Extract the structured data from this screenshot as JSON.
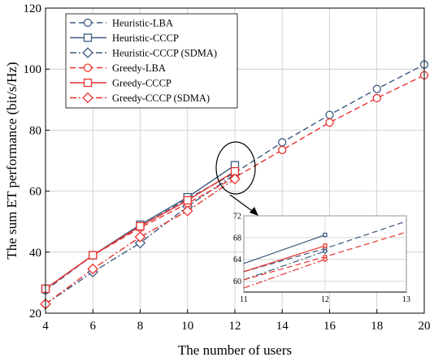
{
  "chart_data": {
    "type": "line",
    "xlabel": "The number of users",
    "ylabel": "The sum ET performance (bit/s/Hz)",
    "xlim": [
      4,
      20
    ],
    "ylim": [
      20,
      120
    ],
    "xticks": [
      "4",
      "6",
      "8",
      "10",
      "12",
      "14",
      "16",
      "18",
      "20"
    ],
    "yticks": [
      "20",
      "40",
      "60",
      "80",
      "100",
      "120"
    ],
    "grid": true,
    "legend_position": "top-left",
    "colors": {
      "heuristic": "#3d5a80",
      "greedy": "#e8322e"
    },
    "series": [
      {
        "name": "Heuristic-LBA",
        "color": "#3d5a80",
        "dash": "dashed",
        "marker": "circle",
        "x": [
          4,
          6,
          8,
          10,
          12,
          14,
          16,
          18,
          20
        ],
        "y": [
          27.5,
          39,
          48.5,
          57.5,
          66,
          76,
          85,
          93.5,
          101.5
        ]
      },
      {
        "name": "Heuristic-CCCP",
        "color": "#3d5a80",
        "dash": "solid",
        "marker": "square",
        "x": [
          4,
          6,
          8,
          10,
          12
        ],
        "y": [
          28,
          39,
          49,
          58,
          68.5
        ]
      },
      {
        "name": "Heuristic-CCCP (SDMA)",
        "color": "#3d5a80",
        "dash": "dashdot",
        "marker": "diamond",
        "x": [
          4,
          6,
          8,
          10,
          12
        ],
        "y": [
          23,
          33.5,
          43,
          55,
          65.5
        ]
      },
      {
        "name": "Greedy-LBA",
        "color": "#e8322e",
        "dash": "dashed",
        "marker": "circle",
        "x": [
          4,
          6,
          8,
          10,
          12,
          14,
          16,
          18,
          20
        ],
        "y": [
          28,
          39,
          48,
          56,
          64.5,
          73.5,
          82.5,
          90.5,
          98
        ]
      },
      {
        "name": "Greedy-CCCP",
        "color": "#e8322e",
        "dash": "solid",
        "marker": "square",
        "x": [
          4,
          6,
          8,
          10,
          12
        ],
        "y": [
          28,
          39,
          48.5,
          57,
          66.5
        ]
      },
      {
        "name": "Greedy-CCCP (SDMA)",
        "color": "#e8322e",
        "dash": "dashdot",
        "marker": "diamond",
        "x": [
          4,
          6,
          8,
          10,
          12
        ],
        "y": [
          23,
          34.5,
          45,
          53.5,
          64
        ]
      }
    ],
    "inset": {
      "xlim": [
        11,
        13
      ],
      "ylim": [
        58,
        72
      ],
      "xticks": [
        "11",
        "12",
        "13"
      ],
      "yticks": [
        "60",
        "64",
        "68",
        "72"
      ]
    }
  }
}
